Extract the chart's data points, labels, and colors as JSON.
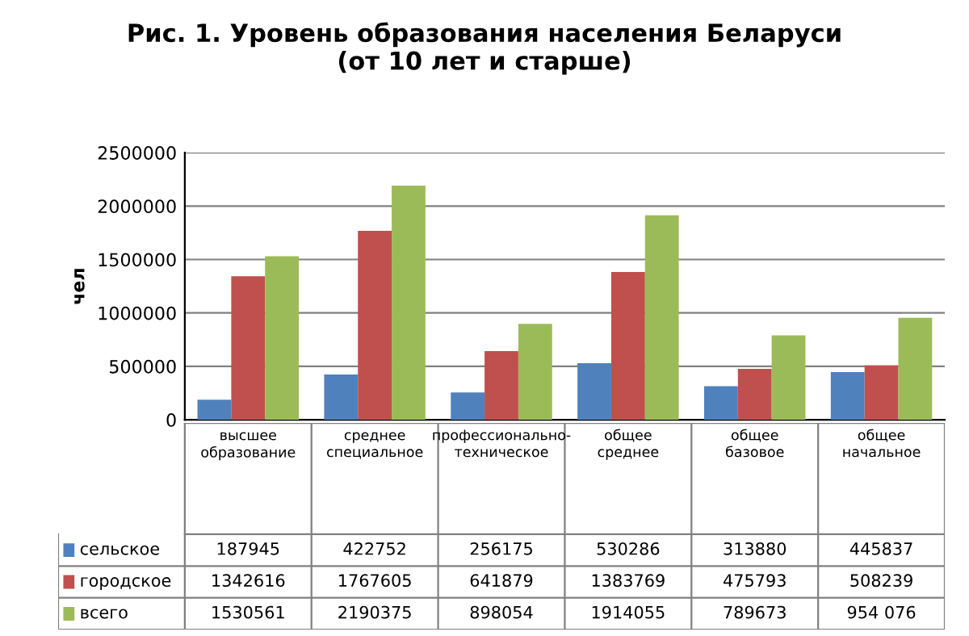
{
  "chart_data": {
    "type": "bar",
    "title": "Рис. 1. Уровень образования населения Беларуси\n(от 10 лет и старше)",
    "ylabel": "чел",
    "categories": [
      "высшее образование",
      "среднее специальное",
      "профессионально-техническое",
      "общее среднее",
      "общее базовое",
      "общее начальное"
    ],
    "series": [
      {
        "name": "сельское",
        "color": "#4f81bd",
        "values": [
          187945,
          422752,
          256175,
          530286,
          313880,
          445837
        ],
        "value_labels": [
          "187945",
          "422752",
          "256175",
          "530286",
          "313880",
          "445837"
        ]
      },
      {
        "name": "городское",
        "color": "#c0504d",
        "values": [
          1342616,
          1767605,
          641879,
          1383769,
          475793,
          508239
        ],
        "value_labels": [
          "1342616",
          "1767605",
          "641879",
          "1383769",
          "475793",
          "508239"
        ]
      },
      {
        "name": "всего",
        "color": "#9bbb59",
        "values": [
          1530561,
          2190375,
          898054,
          1914055,
          789673,
          954076
        ],
        "value_labels": [
          "1530561",
          "2190375",
          "898054",
          "1914055",
          "789673",
          "954 076"
        ]
      }
    ],
    "ylim": [
      0,
      2500000
    ],
    "yticks": [
      0,
      500000,
      1000000,
      1500000,
      2000000,
      2500000
    ],
    "grid": "y",
    "legend": "bottom"
  }
}
